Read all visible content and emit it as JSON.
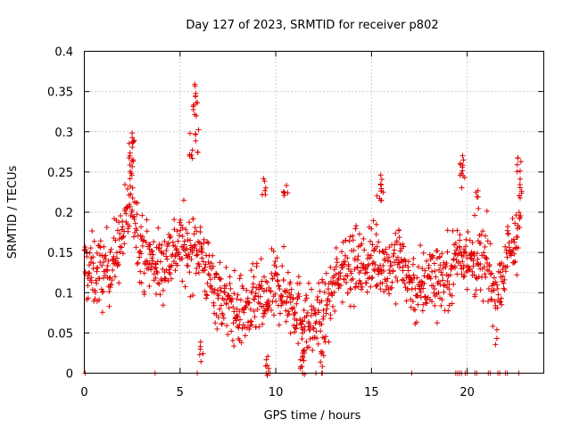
{
  "chart_data": {
    "type": "scatter",
    "title": "Day 127 of 2023, SRMTID for receiver p802",
    "xlabel": "GPS time / hours",
    "ylabel": "SRMTID / TECUs",
    "xlim": [
      0,
      24
    ],
    "ylim": [
      0,
      0.4
    ],
    "grid": true,
    "marker": "+",
    "x_ticks": [
      0,
      5,
      10,
      15,
      20
    ],
    "x_tick_labels": [
      "0",
      "5",
      "10",
      "15",
      "20"
    ],
    "y_ticks": [
      0,
      0.05,
      0.1,
      0.15,
      0.2,
      0.25,
      0.3,
      0.35,
      0.4
    ],
    "y_tick_labels": [
      "0",
      "0.05",
      "0.1",
      "0.15",
      "0.2",
      "0.25",
      "0.3",
      "0.35",
      "0.4"
    ],
    "series": [
      {
        "name": "SRMTID",
        "color": "#e00000",
        "profile": [
          [
            0.0,
            0.13
          ],
          [
            0.5,
            0.125
          ],
          [
            1.0,
            0.125
          ],
          [
            1.5,
            0.14
          ],
          [
            2.0,
            0.17
          ],
          [
            2.5,
            0.22
          ],
          [
            3.0,
            0.15
          ],
          [
            3.5,
            0.14
          ],
          [
            4.0,
            0.13
          ],
          [
            4.5,
            0.15
          ],
          [
            5.0,
            0.16
          ],
          [
            5.5,
            0.15
          ],
          [
            6.0,
            0.16
          ],
          [
            6.5,
            0.12
          ],
          [
            7.0,
            0.1
          ],
          [
            7.5,
            0.085
          ],
          [
            8.0,
            0.075
          ],
          [
            8.5,
            0.075
          ],
          [
            9.0,
            0.09
          ],
          [
            9.5,
            0.085
          ],
          [
            10.0,
            0.11
          ],
          [
            10.5,
            0.1
          ],
          [
            11.0,
            0.085
          ],
          [
            11.5,
            0.065
          ],
          [
            12.0,
            0.06
          ],
          [
            12.5,
            0.075
          ],
          [
            13.0,
            0.1
          ],
          [
            13.5,
            0.14
          ],
          [
            14.0,
            0.14
          ],
          [
            14.5,
            0.13
          ],
          [
            15.0,
            0.14
          ],
          [
            15.5,
            0.14
          ],
          [
            16.0,
            0.13
          ],
          [
            16.5,
            0.15
          ],
          [
            17.0,
            0.11
          ],
          [
            17.5,
            0.1
          ],
          [
            18.0,
            0.12
          ],
          [
            18.5,
            0.12
          ],
          [
            19.0,
            0.12
          ],
          [
            19.5,
            0.15
          ],
          [
            20.0,
            0.15
          ],
          [
            20.5,
            0.13
          ],
          [
            21.0,
            0.14
          ],
          [
            21.5,
            0.09
          ],
          [
            22.0,
            0.14
          ],
          [
            22.5,
            0.16
          ],
          [
            22.8,
            0.2
          ]
        ],
        "spread": 0.045,
        "peaks": [
          [
            2.4,
            0.3
          ],
          [
            2.5,
            0.29
          ],
          [
            2.45,
            0.275
          ],
          [
            5.6,
            0.3
          ],
          [
            5.8,
            0.37
          ],
          [
            5.75,
            0.35
          ],
          [
            5.9,
            0.305
          ],
          [
            9.4,
            0.25
          ],
          [
            10.5,
            0.25
          ],
          [
            15.4,
            0.24
          ],
          [
            15.6,
            0.25
          ],
          [
            19.7,
            0.275
          ],
          [
            19.75,
            0.265
          ],
          [
            20.5,
            0.23
          ],
          [
            22.7,
            0.27
          ],
          [
            22.8,
            0.25
          ],
          [
            6.1,
            0.04
          ],
          [
            9.6,
            0.03
          ],
          [
            11.4,
            0.02
          ],
          [
            11.5,
            0.03
          ],
          [
            12.4,
            0.03
          ]
        ],
        "zero_hours": [
          0.05,
          3.7,
          5.9,
          9.5,
          9.6,
          9.7,
          11.4,
          12.1,
          12.4,
          17.1,
          19.4,
          19.5,
          19.6,
          19.7,
          19.9,
          20.0,
          20.4,
          20.5,
          21.1,
          21.2,
          21.6,
          21.7,
          22.0,
          22.1,
          22.7
        ]
      }
    ]
  }
}
